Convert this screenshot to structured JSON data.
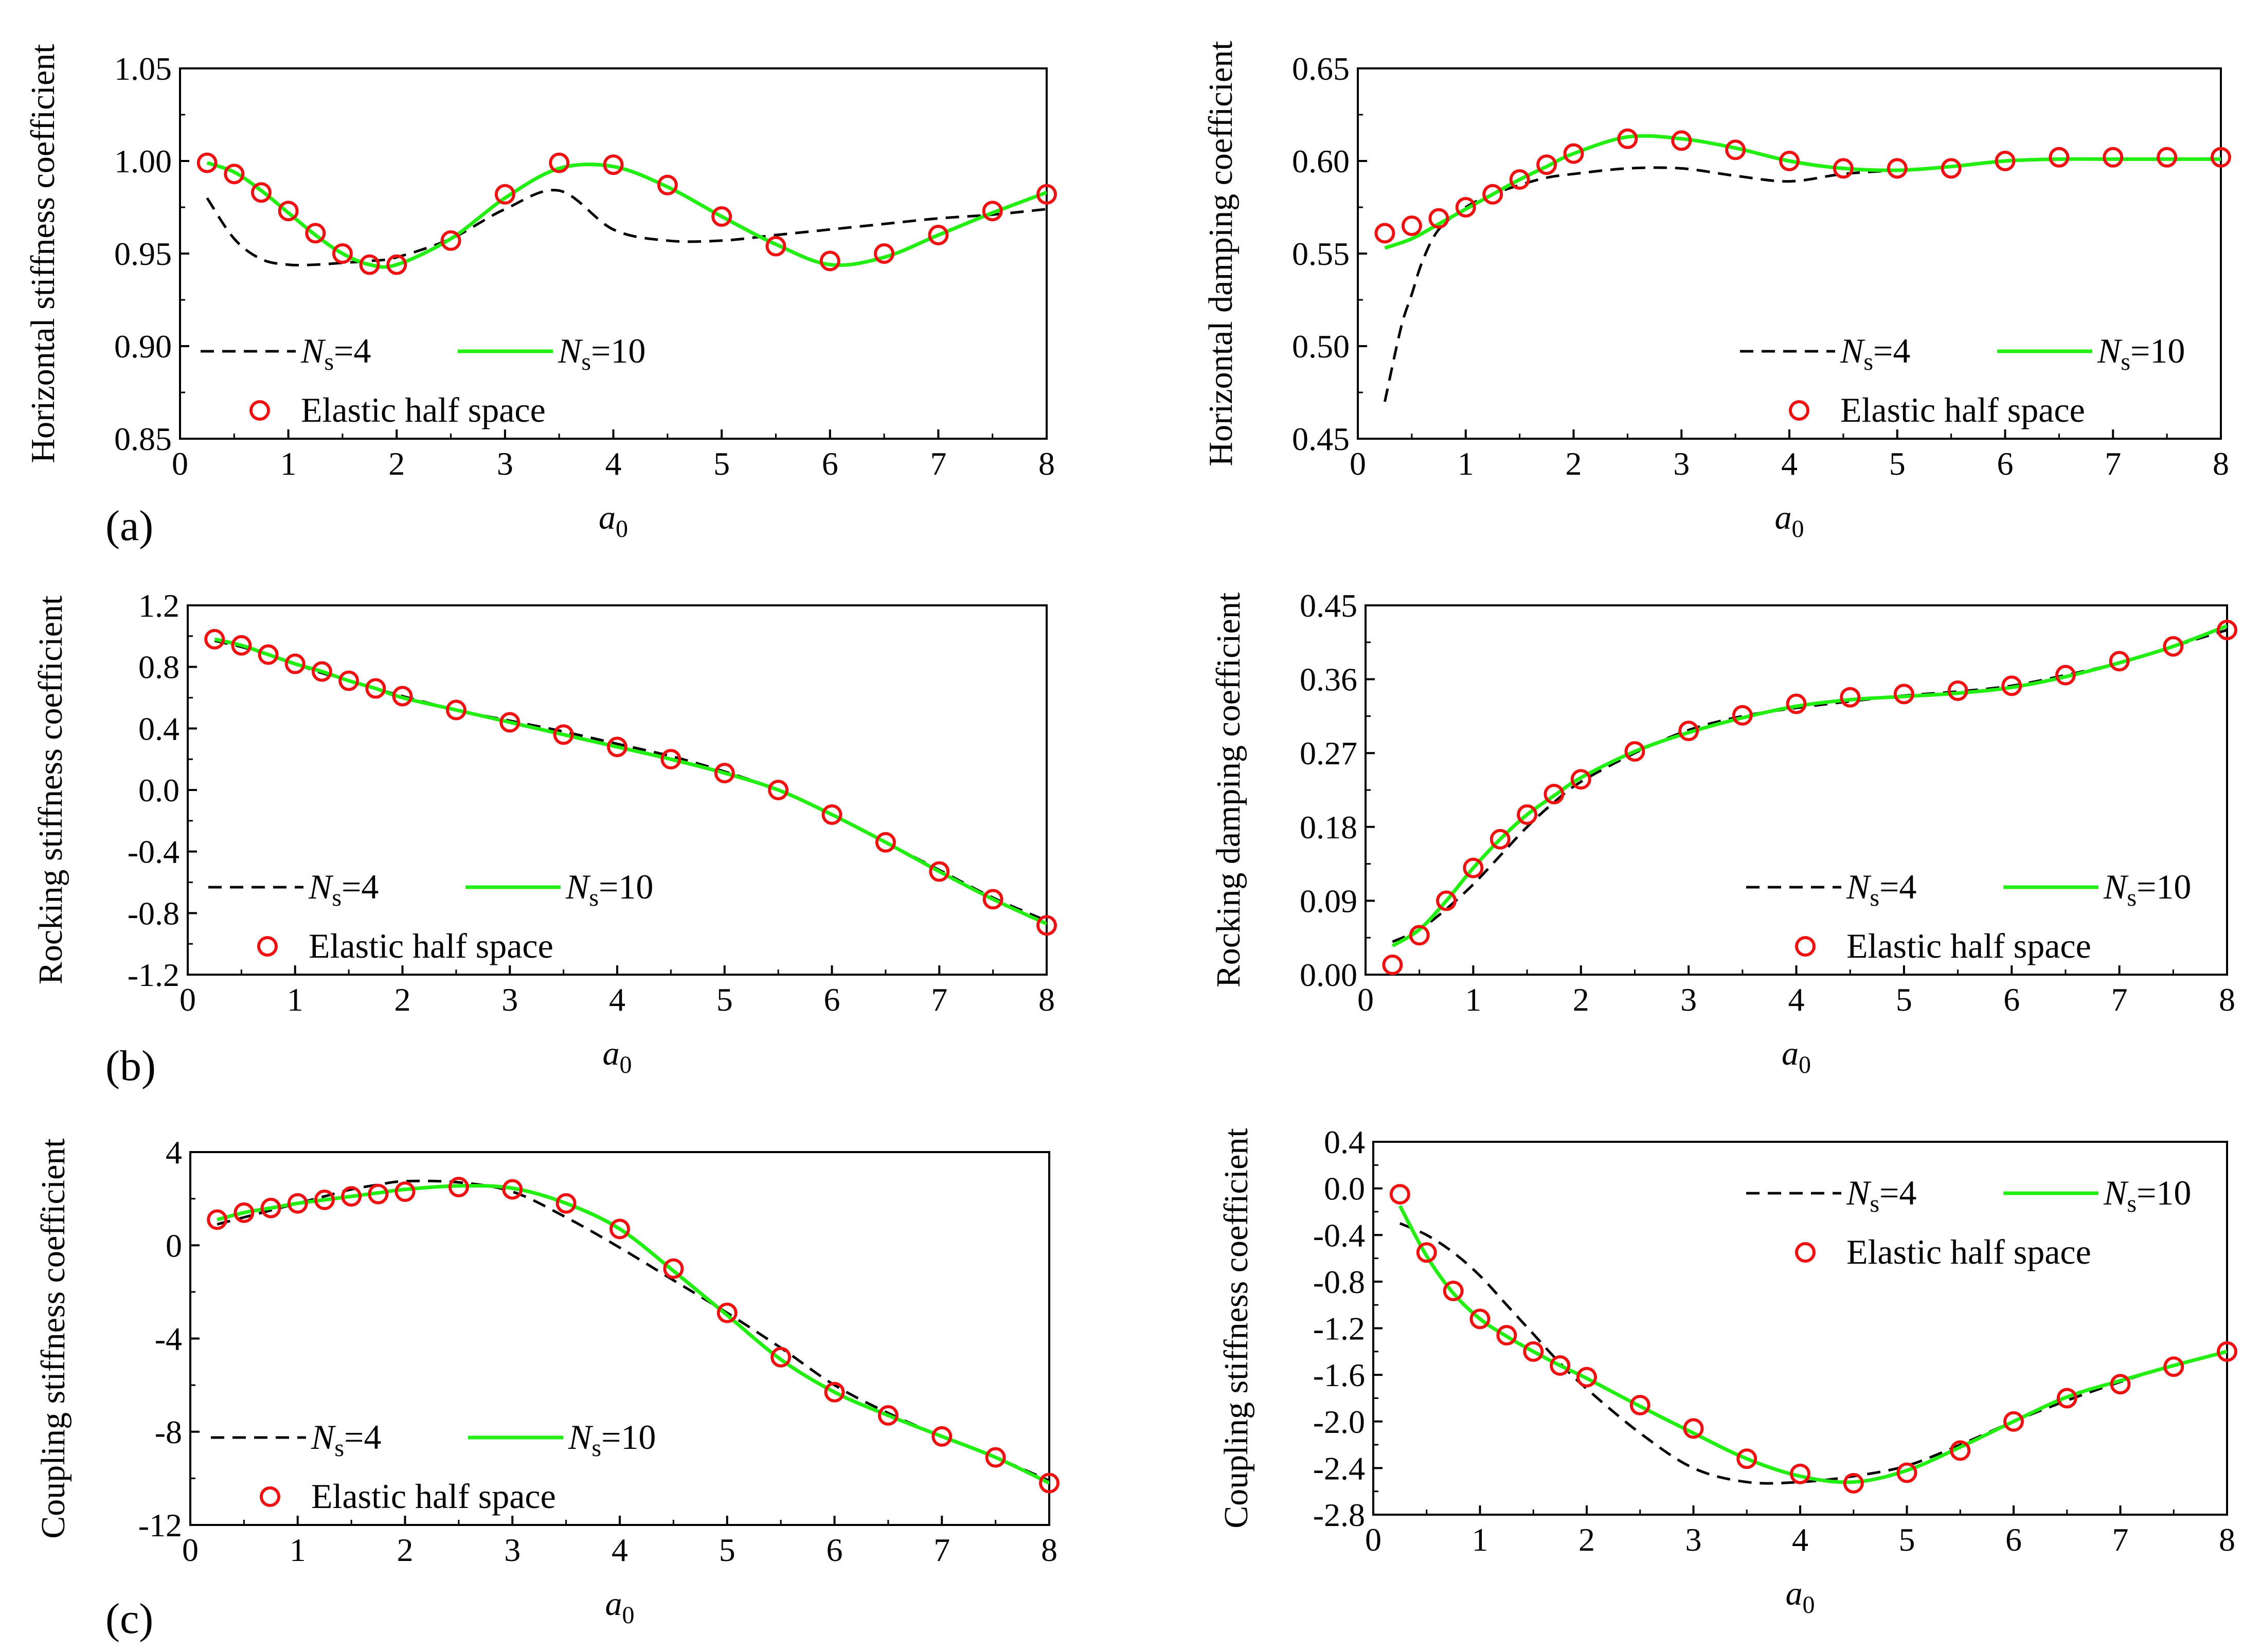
{
  "colors": {
    "ns4": "#000000",
    "ns10": "#22ee11",
    "marker": "#ee1111",
    "frame": "#000000",
    "background": "#ffffff"
  },
  "legend": {
    "ns_symbol": "N",
    "ns_subscript": "s",
    "ns4_value": "=4",
    "ns10_value": "=10",
    "elastic": "Elastic half space"
  },
  "panel_labels": [
    "(a)",
    "(b)",
    "(c)"
  ],
  "xlabel_main": "a",
  "xlabel_sub": "0",
  "chart_data": [
    {
      "type": "line",
      "title": "",
      "ylabel": "Horizontal stiffness coefficient",
      "xlim": [
        0,
        8
      ],
      "ylim": [
        0.85,
        1.05
      ],
      "xticks": [
        "0",
        "1",
        "2",
        "3",
        "4",
        "5",
        "6",
        "7",
        "8"
      ],
      "yticks": [
        "0.85",
        "0.90",
        "0.95",
        "1.00",
        "1.05"
      ],
      "legend_position": "lower-left",
      "series": [
        {
          "name": "Ns=4",
          "style": "dashed",
          "x": [
            0.25,
            0.5,
            0.75,
            1,
            1.25,
            1.5,
            1.75,
            2,
            2.5,
            3,
            3.5,
            4,
            4.5,
            5,
            5.5,
            6,
            6.5,
            7,
            7.5,
            8
          ],
          "values": [
            0.98,
            0.958,
            0.947,
            0.944,
            0.944,
            0.945,
            0.946,
            0.948,
            0.958,
            0.974,
            0.984,
            0.963,
            0.957,
            0.957,
            0.96,
            0.963,
            0.966,
            0.969,
            0.971,
            0.974
          ]
        },
        {
          "name": "Ns=10",
          "style": "solid",
          "x": [
            0.25,
            0.5,
            0.75,
            1,
            1.25,
            1.5,
            1.75,
            2,
            2.5,
            3,
            3.5,
            4,
            4.5,
            5,
            5.5,
            6,
            6.5,
            7,
            7.5,
            8
          ],
          "values": [
            0.999,
            0.994,
            0.984,
            0.972,
            0.96,
            0.95,
            0.944,
            0.944,
            0.958,
            0.98,
            0.996,
            0.997,
            0.986,
            0.97,
            0.955,
            0.944,
            0.948,
            0.96,
            0.972,
            0.983
          ]
        },
        {
          "name": "Elastic half space",
          "style": "marker",
          "x": [
            0.25,
            0.5,
            0.75,
            1,
            1.25,
            1.5,
            1.75,
            2,
            2.5,
            3,
            3.5,
            4,
            4.5,
            5,
            5.5,
            6,
            6.5,
            7,
            7.5,
            8
          ],
          "values": [
            0.999,
            0.993,
            0.983,
            0.973,
            0.961,
            0.95,
            0.944,
            0.944,
            0.957,
            0.982,
            0.999,
            0.998,
            0.987,
            0.97,
            0.954,
            0.946,
            0.95,
            0.96,
            0.973,
            0.982
          ]
        }
      ]
    },
    {
      "type": "line",
      "title": "",
      "ylabel": "Horizontal damping coefficient",
      "xlim": [
        0,
        8
      ],
      "ylim": [
        0.45,
        0.65
      ],
      "xticks": [
        "0",
        "1",
        "2",
        "3",
        "4",
        "5",
        "6",
        "7",
        "8"
      ],
      "yticks": [
        "0.45",
        "0.50",
        "0.55",
        "0.60",
        "0.65"
      ],
      "legend_position": "lower-right",
      "series": [
        {
          "name": "Ns=4",
          "style": "dashed",
          "x": [
            0.25,
            0.4,
            0.5,
            0.6,
            0.75,
            1,
            1.25,
            1.5,
            1.75,
            2,
            2.5,
            3,
            3.5,
            4,
            4.5,
            5,
            5.5,
            6,
            6.5,
            7,
            7.5,
            8
          ],
          "values": [
            0.47,
            0.51,
            0.528,
            0.546,
            0.563,
            0.575,
            0.582,
            0.587,
            0.591,
            0.593,
            0.596,
            0.596,
            0.592,
            0.589,
            0.593,
            0.595,
            0.597,
            0.6,
            0.601,
            0.601,
            0.601,
            0.601
          ]
        },
        {
          "name": "Ns=10",
          "style": "solid",
          "x": [
            0.25,
            0.5,
            0.75,
            1,
            1.25,
            1.5,
            1.75,
            2,
            2.5,
            3,
            3.5,
            4,
            4.5,
            5,
            5.5,
            6,
            6.5,
            7,
            7.5,
            8
          ],
          "values": [
            0.553,
            0.558,
            0.566,
            0.574,
            0.582,
            0.59,
            0.597,
            0.604,
            0.613,
            0.612,
            0.607,
            0.6,
            0.596,
            0.595,
            0.597,
            0.6,
            0.601,
            0.601,
            0.601,
            0.601
          ]
        },
        {
          "name": "Elastic half space",
          "style": "marker",
          "x": [
            0.25,
            0.5,
            0.75,
            1,
            1.25,
            1.5,
            1.75,
            2,
            2.5,
            3,
            3.5,
            4,
            4.5,
            5,
            5.5,
            6,
            6.5,
            7,
            7.5,
            8
          ],
          "values": [
            0.561,
            0.565,
            0.569,
            0.575,
            0.582,
            0.59,
            0.598,
            0.604,
            0.612,
            0.611,
            0.606,
            0.6,
            0.596,
            0.596,
            0.596,
            0.6,
            0.602,
            0.602,
            0.602,
            0.602
          ]
        }
      ]
    },
    {
      "type": "line",
      "title": "",
      "ylabel": "Rocking stiffness coefficient",
      "xlim": [
        0,
        8
      ],
      "ylim": [
        -1.2,
        1.2
      ],
      "xticks": [
        "0",
        "1",
        "2",
        "3",
        "4",
        "5",
        "6",
        "7",
        "8"
      ],
      "yticks": [
        "-1.2",
        "-0.8",
        "-0.4",
        "0.0",
        "0.4",
        "0.8",
        "1.2"
      ],
      "legend_position": "lower-left",
      "series": [
        {
          "name": "Ns=4",
          "style": "dashed",
          "x": [
            0.25,
            0.5,
            0.75,
            1,
            1.25,
            1.5,
            1.75,
            2,
            2.5,
            3,
            3.5,
            4,
            4.5,
            5,
            5.5,
            6,
            6.5,
            7,
            7.5,
            8
          ],
          "values": [
            0.97,
            0.93,
            0.88,
            0.82,
            0.76,
            0.71,
            0.66,
            0.61,
            0.52,
            0.45,
            0.38,
            0.3,
            0.22,
            0.12,
            0.0,
            -0.16,
            -0.34,
            -0.52,
            -0.7,
            -0.85
          ]
        },
        {
          "name": "Ns=10",
          "style": "solid",
          "x": [
            0.25,
            0.5,
            0.75,
            1,
            1.25,
            1.5,
            1.75,
            2,
            2.5,
            3,
            3.5,
            4,
            4.5,
            5,
            5.5,
            6,
            6.5,
            7,
            7.5,
            8
          ],
          "values": [
            0.98,
            0.94,
            0.88,
            0.82,
            0.77,
            0.71,
            0.66,
            0.6,
            0.52,
            0.44,
            0.36,
            0.28,
            0.2,
            0.11,
            0.0,
            -0.16,
            -0.34,
            -0.53,
            -0.71,
            -0.87
          ]
        },
        {
          "name": "Elastic half space",
          "style": "marker",
          "x": [
            0.25,
            0.5,
            0.75,
            1,
            1.25,
            1.5,
            1.75,
            2,
            2.5,
            3,
            3.5,
            4,
            4.5,
            5,
            5.5,
            6,
            6.5,
            7,
            7.5,
            8
          ],
          "values": [
            0.98,
            0.94,
            0.88,
            0.82,
            0.77,
            0.71,
            0.66,
            0.61,
            0.52,
            0.44,
            0.36,
            0.28,
            0.2,
            0.11,
            0.0,
            -0.16,
            -0.34,
            -0.53,
            -0.71,
            -0.88
          ]
        }
      ]
    },
    {
      "type": "line",
      "title": "",
      "ylabel": "Rocking damping coefficient",
      "xlim": [
        0,
        8
      ],
      "ylim": [
        0.0,
        0.45
      ],
      "xticks": [
        "0",
        "1",
        "2",
        "3",
        "4",
        "5",
        "6",
        "7",
        "8"
      ],
      "yticks": [
        "0.00",
        "0.09",
        "0.18",
        "0.27",
        "0.36",
        "0.45"
      ],
      "legend_position": "lower-right",
      "series": [
        {
          "name": "Ns=4",
          "style": "dashed",
          "x": [
            0.25,
            0.5,
            0.75,
            1,
            1.25,
            1.5,
            1.75,
            2,
            2.5,
            3,
            3.5,
            4,
            4.5,
            5,
            5.5,
            6,
            6.5,
            7,
            7.5,
            8
          ],
          "values": [
            0.04,
            0.055,
            0.08,
            0.11,
            0.145,
            0.18,
            0.21,
            0.235,
            0.27,
            0.298,
            0.315,
            0.325,
            0.333,
            0.34,
            0.345,
            0.352,
            0.365,
            0.38,
            0.4,
            0.42
          ]
        },
        {
          "name": "Ns=10",
          "style": "solid",
          "x": [
            0.25,
            0.5,
            0.75,
            1,
            1.25,
            1.5,
            1.75,
            2,
            2.5,
            3,
            3.5,
            4,
            4.5,
            5,
            5.5,
            6,
            6.5,
            7,
            7.5,
            8
          ],
          "values": [
            0.035,
            0.055,
            0.09,
            0.13,
            0.165,
            0.195,
            0.218,
            0.24,
            0.272,
            0.295,
            0.313,
            0.327,
            0.335,
            0.339,
            0.343,
            0.35,
            0.363,
            0.38,
            0.4,
            0.425
          ]
        },
        {
          "name": "Elastic half space",
          "style": "marker",
          "x": [
            0.25,
            0.5,
            0.75,
            1,
            1.25,
            1.5,
            1.75,
            2,
            2.5,
            3,
            3.5,
            4,
            4.5,
            5,
            5.5,
            6,
            6.5,
            7,
            7.5,
            8
          ],
          "values": [
            0.012,
            0.048,
            0.09,
            0.13,
            0.165,
            0.195,
            0.22,
            0.238,
            0.272,
            0.297,
            0.316,
            0.33,
            0.338,
            0.342,
            0.346,
            0.352,
            0.365,
            0.382,
            0.4,
            0.42
          ]
        }
      ]
    },
    {
      "type": "line",
      "title": "",
      "ylabel": "Coupling stiffness coefficient",
      "xlim": [
        0,
        8
      ],
      "ylim": [
        -12,
        4
      ],
      "xticks": [
        "0",
        "1",
        "2",
        "3",
        "4",
        "5",
        "6",
        "7",
        "8"
      ],
      "yticks": [
        "-12",
        "-8",
        "-4",
        "0",
        "4"
      ],
      "legend_position": "lower-left",
      "series": [
        {
          "name": "Ns=4",
          "style": "dashed",
          "x": [
            0.25,
            0.5,
            0.75,
            1,
            1.25,
            1.5,
            1.75,
            2,
            2.5,
            3,
            3.5,
            4,
            4.5,
            5,
            5.5,
            6,
            6.5,
            7,
            7.5,
            8
          ],
          "values": [
            0.9,
            1.2,
            1.5,
            1.8,
            2.1,
            2.4,
            2.6,
            2.75,
            2.7,
            2.3,
            1.2,
            -0.1,
            -1.5,
            -2.9,
            -4.4,
            -6.0,
            -7.2,
            -8.2,
            -9.1,
            -10.1
          ]
        },
        {
          "name": "Ns=10",
          "style": "solid",
          "x": [
            0.25,
            0.5,
            0.75,
            1,
            1.25,
            1.5,
            1.75,
            2,
            2.5,
            3,
            3.5,
            4,
            4.5,
            5,
            5.5,
            6,
            6.5,
            7,
            7.5,
            8
          ],
          "values": [
            1.1,
            1.4,
            1.6,
            1.8,
            1.95,
            2.1,
            2.25,
            2.4,
            2.55,
            2.45,
            1.8,
            0.7,
            -1.1,
            -3.0,
            -4.9,
            -6.3,
            -7.3,
            -8.2,
            -9.1,
            -10.2
          ]
        },
        {
          "name": "Elastic half space",
          "style": "marker",
          "x": [
            0.25,
            0.5,
            0.75,
            1,
            1.25,
            1.5,
            1.75,
            2,
            2.5,
            3,
            3.5,
            4,
            4.5,
            5,
            5.5,
            6,
            6.5,
            7,
            7.5,
            8
          ],
          "values": [
            1.1,
            1.4,
            1.6,
            1.8,
            1.95,
            2.1,
            2.2,
            2.3,
            2.5,
            2.4,
            1.8,
            0.7,
            -1.0,
            -2.9,
            -4.8,
            -6.3,
            -7.3,
            -8.2,
            -9.1,
            -10.2
          ]
        }
      ]
    },
    {
      "type": "line",
      "title": "",
      "ylabel": "Coupling stiffness coefficient",
      "xlim": [
        0,
        8
      ],
      "ylim": [
        -2.8,
        0.4
      ],
      "xticks": [
        "0",
        "1",
        "2",
        "3",
        "4",
        "5",
        "6",
        "7",
        "8"
      ],
      "yticks": [
        "-2.8",
        "-2.4",
        "-2.0",
        "-1.6",
        "-1.2",
        "-0.8",
        "-0.4",
        "0.0",
        "0.4"
      ],
      "legend_position": "upper-right",
      "series": [
        {
          "name": "Ns=4",
          "style": "dashed",
          "x": [
            0.25,
            0.5,
            0.75,
            1,
            1.25,
            1.5,
            1.75,
            2,
            2.5,
            3,
            3.5,
            4,
            4.5,
            5,
            5.5,
            6,
            6.5,
            7,
            7.5,
            8
          ],
          "values": [
            -0.3,
            -0.4,
            -0.55,
            -0.75,
            -1.0,
            -1.25,
            -1.5,
            -1.72,
            -2.1,
            -2.4,
            -2.52,
            -2.52,
            -2.47,
            -2.38,
            -2.2,
            -2.0,
            -1.82,
            -1.66,
            -1.52,
            -1.4
          ]
        },
        {
          "name": "Ns=10",
          "style": "solid",
          "x": [
            0.25,
            0.5,
            0.75,
            1,
            1.25,
            1.5,
            1.75,
            2,
            2.5,
            3,
            3.5,
            4,
            4.5,
            5,
            5.5,
            6,
            6.5,
            7,
            7.5,
            8
          ],
          "values": [
            -0.15,
            -0.58,
            -0.9,
            -1.12,
            -1.27,
            -1.4,
            -1.52,
            -1.63,
            -1.87,
            -2.1,
            -2.32,
            -2.47,
            -2.52,
            -2.42,
            -2.22,
            -2.0,
            -1.79,
            -1.65,
            -1.52,
            -1.4
          ]
        },
        {
          "name": "Elastic half space",
          "style": "marker",
          "x": [
            0.25,
            0.5,
            0.75,
            1,
            1.25,
            1.5,
            1.75,
            2,
            2.5,
            3,
            3.5,
            4,
            4.5,
            5,
            5.5,
            6,
            6.5,
            7,
            7.5,
            8
          ],
          "values": [
            -0.05,
            -0.55,
            -0.88,
            -1.12,
            -1.26,
            -1.4,
            -1.52,
            -1.62,
            -1.86,
            -2.06,
            -2.32,
            -2.45,
            -2.53,
            -2.44,
            -2.25,
            -2.0,
            -1.8,
            -1.68,
            -1.53,
            -1.4
          ]
        }
      ]
    }
  ]
}
